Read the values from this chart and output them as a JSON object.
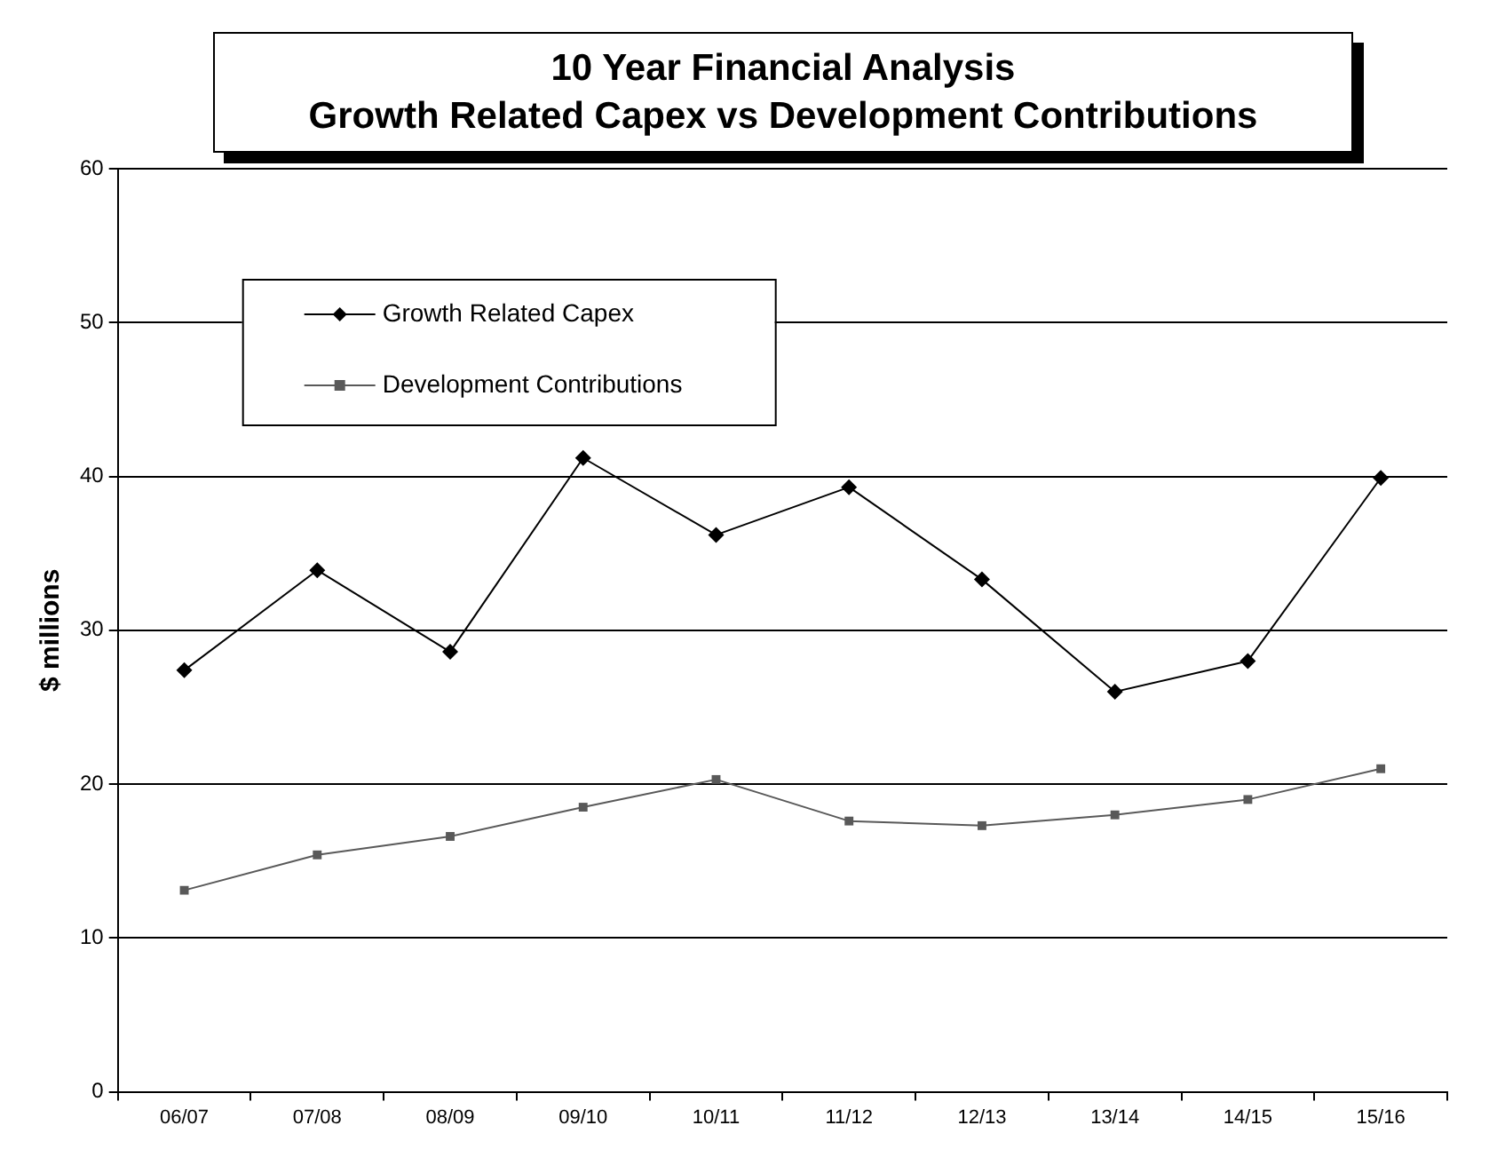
{
  "chart_data": {
    "type": "line",
    "title": "10 Year Financial Analysis\nGrowth Related Capex vs Development Contributions",
    "ylabel": "$ millions",
    "categories": [
      "06/07",
      "07/08",
      "08/09",
      "09/10",
      "10/11",
      "11/12",
      "12/13",
      "13/14",
      "14/15",
      "15/16"
    ],
    "series": [
      {
        "name": "Growth Related Capex",
        "color": "#000000",
        "marker": "diamond",
        "values": [
          27.4,
          33.9,
          28.6,
          41.2,
          36.2,
          39.3,
          33.3,
          26.0,
          28.0,
          39.9
        ]
      },
      {
        "name": "Development Contributions",
        "color": "#595959",
        "marker": "square",
        "values": [
          13.1,
          15.4,
          16.6,
          18.5,
          20.3,
          17.6,
          17.3,
          18.0,
          19.0,
          21.0
        ]
      }
    ],
    "ylim": [
      0,
      60
    ],
    "yticks": [
      0,
      10,
      20,
      30,
      40,
      50,
      60
    ],
    "grid": "y",
    "legend": "top left",
    "line_style": "solid"
  }
}
